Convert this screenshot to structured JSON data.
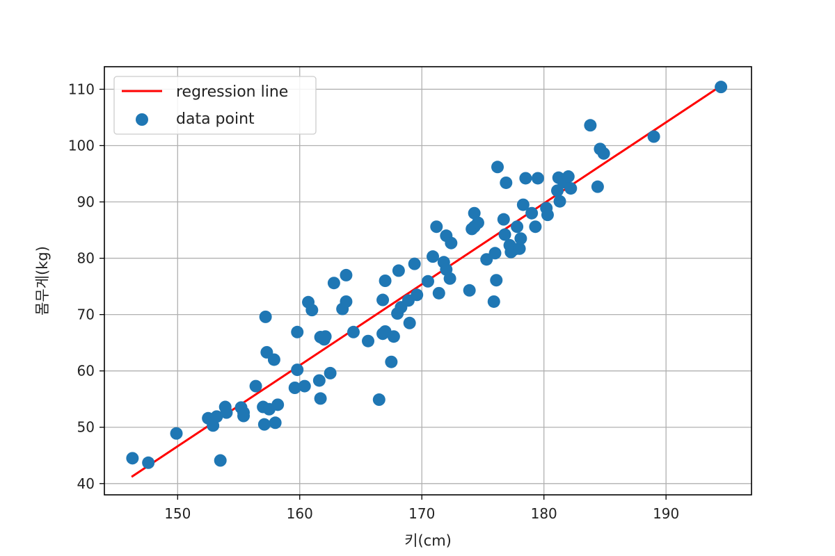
{
  "chart_data": {
    "type": "scatter",
    "xlabel": "키(cm)",
    "ylabel": "몸무게(kg)",
    "xlim": [
      144,
      197
    ],
    "ylim": [
      38,
      114
    ],
    "xticks": [
      150,
      160,
      170,
      180,
      190
    ],
    "yticks": [
      40,
      50,
      60,
      70,
      80,
      90,
      100,
      110
    ],
    "grid": true,
    "legend": {
      "placement": "top-left",
      "entries": [
        "regression line",
        "data point"
      ]
    },
    "colors": {
      "points": "#1f77b4",
      "line": "#ff0000",
      "grid": "#b0b0b0"
    },
    "regression_line": {
      "name": "regression line",
      "x": [
        146.3,
        194.5
      ],
      "y": [
        41.3,
        110.6
      ]
    },
    "series": [
      {
        "name": "data point",
        "points": [
          [
            146.3,
            44.5
          ],
          [
            147.6,
            43.7
          ],
          [
            149.9,
            48.9
          ],
          [
            152.5,
            51.6
          ],
          [
            152.9,
            50.3
          ],
          [
            153.2,
            51.9
          ],
          [
            153.5,
            44.1
          ],
          [
            153.9,
            53.6
          ],
          [
            154.0,
            52.6
          ],
          [
            155.2,
            53.5
          ],
          [
            155.4,
            52.6
          ],
          [
            155.4,
            52.0
          ],
          [
            156.4,
            57.3
          ],
          [
            157.0,
            53.6
          ],
          [
            157.1,
            50.5
          ],
          [
            157.2,
            69.6
          ],
          [
            157.3,
            63.3
          ],
          [
            157.5,
            53.2
          ],
          [
            157.9,
            62.0
          ],
          [
            158.0,
            50.8
          ],
          [
            158.2,
            54.0
          ],
          [
            159.6,
            57.0
          ],
          [
            159.8,
            60.2
          ],
          [
            159.8,
            66.9
          ],
          [
            160.4,
            57.3
          ],
          [
            160.7,
            72.2
          ],
          [
            161.0,
            70.8
          ],
          [
            161.6,
            58.3
          ],
          [
            161.7,
            55.1
          ],
          [
            161.7,
            66.0
          ],
          [
            162.0,
            65.6
          ],
          [
            162.1,
            66.1
          ],
          [
            162.5,
            59.6
          ],
          [
            162.8,
            75.6
          ],
          [
            163.5,
            71.0
          ],
          [
            163.8,
            72.3
          ],
          [
            163.8,
            77.0
          ],
          [
            164.4,
            66.9
          ],
          [
            165.6,
            65.3
          ],
          [
            166.5,
            54.9
          ],
          [
            166.8,
            72.6
          ],
          [
            166.8,
            66.6
          ],
          [
            167.0,
            76.0
          ],
          [
            167.0,
            67.0
          ],
          [
            167.5,
            61.6
          ],
          [
            167.7,
            66.1
          ],
          [
            168.0,
            70.2
          ],
          [
            168.1,
            77.8
          ],
          [
            168.3,
            71.3
          ],
          [
            168.9,
            72.5
          ],
          [
            169.0,
            68.5
          ],
          [
            169.4,
            79.0
          ],
          [
            169.6,
            73.5
          ],
          [
            170.5,
            75.9
          ],
          [
            170.9,
            80.3
          ],
          [
            171.2,
            85.6
          ],
          [
            171.4,
            73.8
          ],
          [
            171.8,
            79.3
          ],
          [
            172.0,
            84.0
          ],
          [
            172.0,
            78.0
          ],
          [
            172.3,
            76.4
          ],
          [
            172.4,
            82.7
          ],
          [
            173.9,
            74.3
          ],
          [
            174.1,
            85.2
          ],
          [
            174.3,
            85.6
          ],
          [
            174.3,
            88.0
          ],
          [
            174.6,
            86.3
          ],
          [
            175.3,
            79.8
          ],
          [
            175.9,
            72.3
          ],
          [
            176.0,
            80.9
          ],
          [
            176.1,
            76.1
          ],
          [
            176.2,
            96.2
          ],
          [
            176.7,
            86.9
          ],
          [
            176.8,
            84.2
          ],
          [
            176.9,
            93.4
          ],
          [
            177.2,
            82.3
          ],
          [
            177.3,
            81.1
          ],
          [
            177.6,
            81.6
          ],
          [
            177.8,
            85.6
          ],
          [
            178.0,
            81.7
          ],
          [
            178.1,
            83.5
          ],
          [
            178.3,
            89.5
          ],
          [
            178.5,
            94.2
          ],
          [
            179.0,
            88.0
          ],
          [
            179.3,
            85.6
          ],
          [
            179.5,
            94.2
          ],
          [
            180.2,
            88.9
          ],
          [
            180.3,
            87.7
          ],
          [
            181.1,
            92.0
          ],
          [
            181.2,
            94.3
          ],
          [
            181.3,
            90.1
          ],
          [
            181.6,
            93.5
          ],
          [
            182.0,
            94.5
          ],
          [
            182.2,
            92.4
          ],
          [
            183.8,
            103.6
          ],
          [
            184.4,
            92.7
          ],
          [
            184.6,
            99.4
          ],
          [
            184.9,
            98.6
          ],
          [
            189.0,
            101.6
          ],
          [
            194.5,
            110.4
          ]
        ]
      }
    ]
  }
}
